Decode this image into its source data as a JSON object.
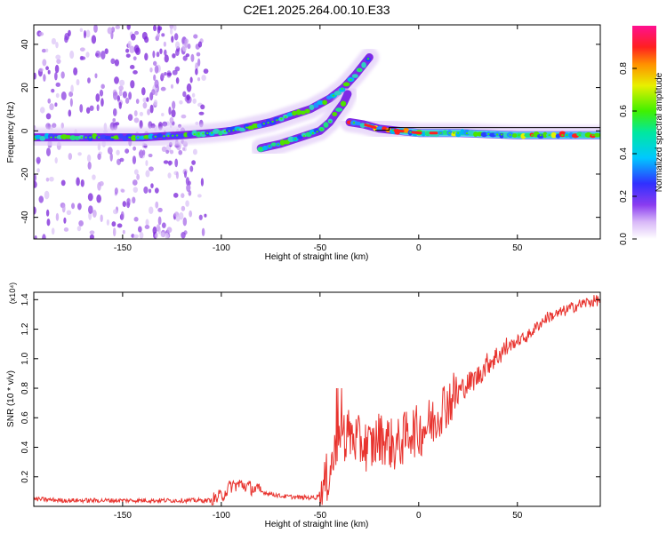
{
  "title": "C2E1.2025.264.00.10.E33",
  "colorbar": {
    "label": "Normalized spectral amplitude",
    "ticks": [
      "0.0",
      "0.2",
      "0.4",
      "0.6",
      "0.8"
    ]
  },
  "chart_data": [
    {
      "type": "heatmap",
      "xlabel": "Height of straight line (km)",
      "ylabel": "Frequency (Hz)",
      "xlim": [
        -195,
        92
      ],
      "ylim": [
        -50,
        49
      ],
      "xticks": [
        "-150",
        "-100",
        "-50",
        "0",
        "50"
      ],
      "yticks": [
        "-40",
        "-20",
        "0",
        "20",
        "40"
      ],
      "grid": false,
      "series": [
        {
          "points": [
            {
              "x": -195,
              "y": -3
            },
            {
              "x": -180,
              "y": -3
            },
            {
              "x": -160,
              "y": -3
            },
            {
              "x": -140,
              "y": -3
            },
            {
              "x": -120,
              "y": -2
            },
            {
              "x": -105,
              "y": -1
            },
            {
              "x": -95,
              "y": 0
            },
            {
              "x": -85,
              "y": 2
            },
            {
              "x": -75,
              "y": 4
            },
            {
              "x": -65,
              "y": 7
            },
            {
              "x": -55,
              "y": 10
            },
            {
              "x": -45,
              "y": 15
            },
            {
              "x": -38,
              "y": 20
            },
            {
              "x": -32,
              "y": 26
            },
            {
              "x": -25,
              "y": 34
            }
          ]
        },
        {
          "points": [
            {
              "x": -80,
              "y": -8
            },
            {
              "x": -70,
              "y": -6
            },
            {
              "x": -60,
              "y": -3
            },
            {
              "x": -50,
              "y": 0
            },
            {
              "x": -45,
              "y": 4
            },
            {
              "x": -42,
              "y": 8
            },
            {
              "x": -38,
              "y": 13
            },
            {
              "x": -36,
              "y": 17
            }
          ]
        },
        {
          "points": [
            {
              "x": -35,
              "y": 4
            },
            {
              "x": -28,
              "y": 3
            },
            {
              "x": -20,
              "y": 1
            },
            {
              "x": -10,
              "y": 0
            },
            {
              "x": 0,
              "y": -1
            },
            {
              "x": 20,
              "y": -1
            },
            {
              "x": 50,
              "y": -2
            },
            {
              "x": 92,
              "y": -2
            }
          ]
        }
      ],
      "colorscale": "rainbow (white→violet→blue→cyan→green→yellow→orange→red→magenta)",
      "zlim": [
        0,
        1
      ]
    },
    {
      "type": "line",
      "xlabel": "Height of straight line (km)",
      "ylabel": "SNR (10 * v/v)",
      "y_multiplier": "(x10⁴)",
      "xlim": [
        -195,
        92
      ],
      "ylim": [
        0,
        1.45
      ],
      "xticks": [
        "-150",
        "-100",
        "-50",
        "0",
        "50"
      ],
      "yticks": [
        "0.2",
        "0.4",
        "0.6",
        "0.8",
        "1.0",
        "1.2",
        "1.4"
      ],
      "grid": false,
      "series": [
        {
          "color": "#e8332e",
          "x": [
            -195,
            -180,
            -160,
            -140,
            -120,
            -105,
            -100,
            -95,
            -90,
            -80,
            -70,
            -60,
            -52,
            -48,
            -44,
            -40,
            -36,
            -32,
            -28,
            -24,
            -20,
            -16,
            -12,
            -8,
            -4,
            0,
            4,
            8,
            12,
            16,
            20,
            25,
            30,
            35,
            40,
            45,
            50,
            55,
            60,
            65,
            70,
            75,
            80,
            85,
            92
          ],
          "y": [
            0.05,
            0.04,
            0.04,
            0.04,
            0.04,
            0.04,
            0.07,
            0.14,
            0.15,
            0.1,
            0.07,
            0.06,
            0.06,
            0.12,
            0.3,
            0.45,
            0.5,
            0.45,
            0.42,
            0.4,
            0.47,
            0.45,
            0.4,
            0.45,
            0.52,
            0.5,
            0.55,
            0.58,
            0.68,
            0.72,
            0.78,
            0.83,
            0.88,
            0.97,
            1.02,
            1.08,
            1.12,
            1.15,
            1.22,
            1.28,
            1.3,
            1.33,
            1.36,
            1.38,
            1.4
          ]
        }
      ]
    }
  ]
}
